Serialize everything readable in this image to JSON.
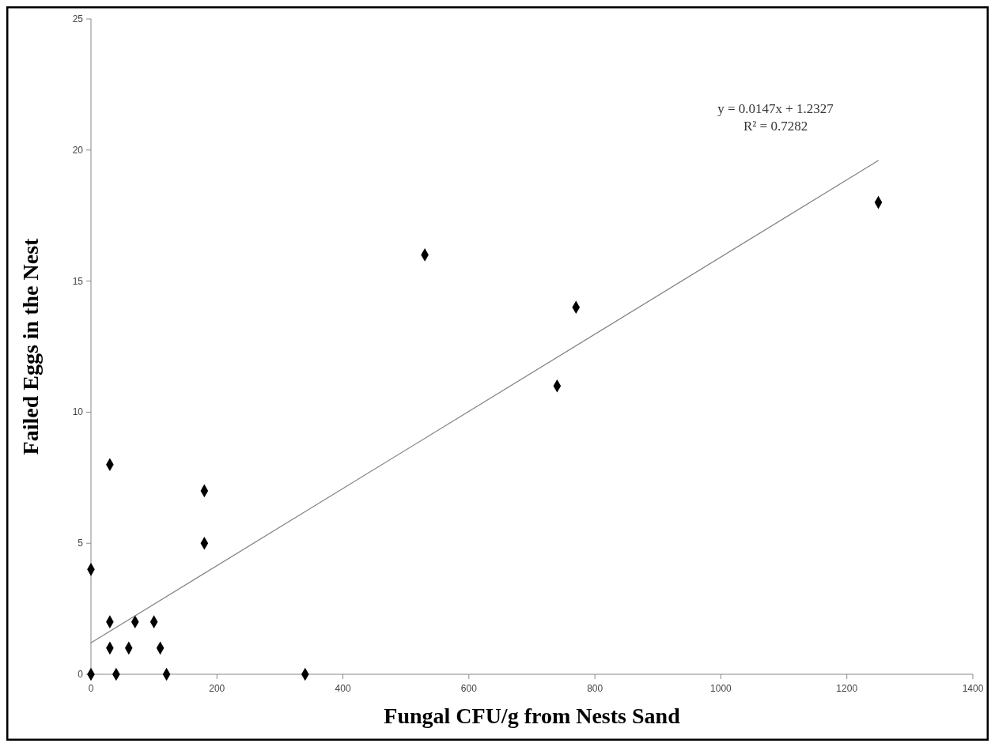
{
  "chart_data": {
    "type": "scatter",
    "xlabel": "Fungal CFU/g from Nests Sand",
    "ylabel": "Failed Eggs in the Nest",
    "xlim": [
      0,
      1400
    ],
    "xticks": [
      0,
      200,
      400,
      600,
      800,
      1000,
      1200,
      1400
    ],
    "ylim": [
      0,
      25
    ],
    "yticks": [
      0,
      5,
      10,
      15,
      20,
      25
    ],
    "grid": false,
    "series": [
      {
        "color": "#000000",
        "marker": "diamond",
        "x": [
          0,
          0,
          30,
          30,
          30,
          40,
          60,
          70,
          100,
          110,
          120,
          180,
          180,
          340,
          530,
          740,
          770,
          1250
        ],
        "values": [
          4,
          0,
          8,
          2,
          1,
          0,
          1,
          2,
          2,
          1,
          0,
          7,
          5,
          0,
          16,
          11,
          14,
          18
        ]
      },
      {
        "type": "line",
        "color": "#808080",
        "x": [
          0,
          1250
        ],
        "values": [
          1.2,
          19.6
        ]
      }
    ],
    "annotations": [
      "y = 0.0147x + 1.2327",
      "R² = 0.7282"
    ]
  }
}
